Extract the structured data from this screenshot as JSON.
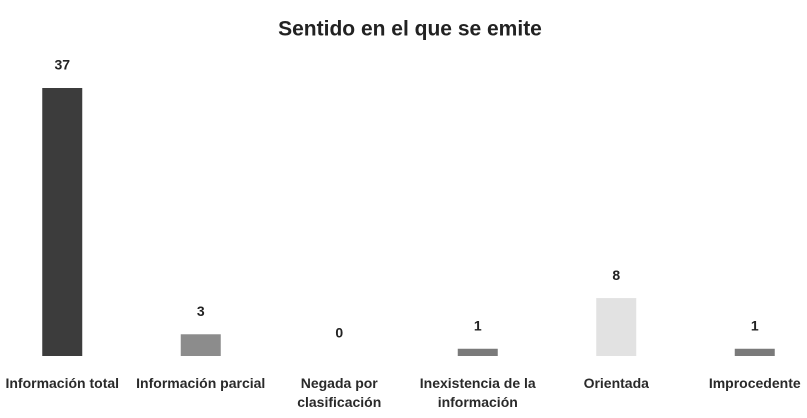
{
  "chart_data": {
    "type": "bar",
    "title": "Sentido en el que se emite",
    "categories": [
      "Información total",
      "Información parcial",
      "Negada por clasificación",
      "Inexistencia de la información",
      "Orientada",
      "Improcedente"
    ],
    "values": [
      37,
      3,
      0,
      1,
      8,
      1
    ],
    "colors": [
      "#3c3c3c",
      "#8c8c8c",
      "#8c8c8c",
      "#7a7a7a",
      "#e2e2e2",
      "#7a7a7a"
    ]
  }
}
